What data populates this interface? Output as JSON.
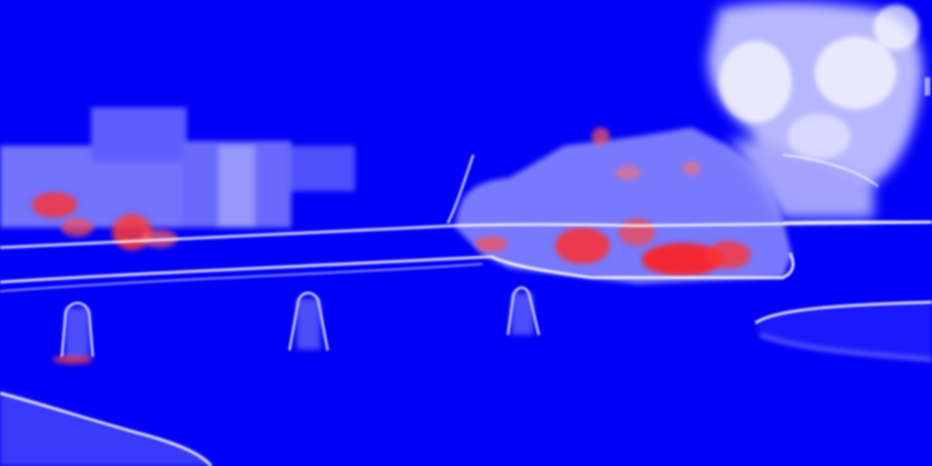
{
  "image": {
    "kind": "per-pixel uncertainty heatmap of a street scene",
    "colormap": {
      "low": "#0000f6",
      "mid": "#ffffff",
      "high": "#ff2020"
    }
  }
}
